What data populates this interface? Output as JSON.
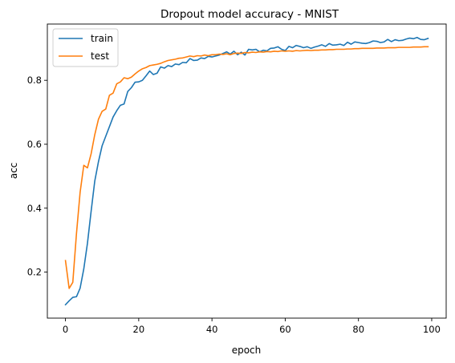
{
  "chart_data": {
    "type": "line",
    "title": "Dropout model accuracy - MNIST",
    "xlabel": "epoch",
    "ylabel": "acc",
    "xlim": [
      -4.95,
      103.95
    ],
    "ylim": [
      0.056,
      0.976
    ],
    "xticks": [
      0,
      20,
      40,
      60,
      80,
      100
    ],
    "xtick_labels": [
      "0",
      "20",
      "40",
      "60",
      "80",
      "100"
    ],
    "yticks": [
      0.2,
      0.4,
      0.6,
      0.8
    ],
    "ytick_labels": [
      "0.2",
      "0.4",
      "0.6",
      "0.8"
    ],
    "grid": false,
    "legend_position": "upper-left",
    "series": [
      {
        "name": "train",
        "color": "#1f77b4",
        "x": [
          0,
          1,
          2,
          3,
          4,
          5,
          6,
          7,
          8,
          9,
          10,
          11,
          12,
          13,
          14,
          15,
          16,
          17,
          18,
          19,
          20,
          21,
          22,
          23,
          24,
          25,
          26,
          27,
          28,
          29,
          30,
          31,
          32,
          33,
          34,
          35,
          36,
          37,
          38,
          39,
          40,
          41,
          42,
          43,
          44,
          45,
          46,
          47,
          48,
          49,
          50,
          51,
          52,
          53,
          54,
          55,
          56,
          57,
          58,
          59,
          60,
          61,
          62,
          63,
          64,
          65,
          66,
          67,
          68,
          69,
          70,
          71,
          72,
          73,
          74,
          75,
          76,
          77,
          78,
          79,
          80,
          81,
          82,
          83,
          84,
          85,
          86,
          87,
          88,
          89,
          90,
          91,
          92,
          93,
          94,
          95,
          96,
          97,
          98,
          99
        ],
        "values": [
          0.098,
          0.11,
          0.121,
          0.123,
          0.15,
          0.21,
          0.29,
          0.39,
          0.485,
          0.545,
          0.595,
          0.625,
          0.655,
          0.685,
          0.705,
          0.722,
          0.726,
          0.765,
          0.777,
          0.794,
          0.795,
          0.8,
          0.814,
          0.829,
          0.818,
          0.822,
          0.842,
          0.838,
          0.846,
          0.843,
          0.851,
          0.849,
          0.856,
          0.855,
          0.868,
          0.862,
          0.863,
          0.87,
          0.868,
          0.875,
          0.873,
          0.876,
          0.879,
          0.884,
          0.889,
          0.882,
          0.891,
          0.88,
          0.888,
          0.879,
          0.897,
          0.895,
          0.897,
          0.889,
          0.894,
          0.892,
          0.9,
          0.901,
          0.905,
          0.897,
          0.893,
          0.906,
          0.902,
          0.909,
          0.906,
          0.902,
          0.905,
          0.9,
          0.904,
          0.907,
          0.911,
          0.906,
          0.915,
          0.91,
          0.911,
          0.913,
          0.909,
          0.919,
          0.913,
          0.92,
          0.918,
          0.916,
          0.915,
          0.918,
          0.923,
          0.922,
          0.918,
          0.92,
          0.928,
          0.921,
          0.927,
          0.924,
          0.925,
          0.929,
          0.932,
          0.93,
          0.934,
          0.928,
          0.927,
          0.931
        ]
      },
      {
        "name": "test",
        "color": "#ff7f0e",
        "x": [
          0,
          1,
          2,
          3,
          4,
          5,
          6,
          7,
          8,
          9,
          10,
          11,
          12,
          13,
          14,
          15,
          16,
          17,
          18,
          19,
          20,
          21,
          22,
          23,
          24,
          25,
          26,
          27,
          28,
          29,
          30,
          31,
          32,
          33,
          34,
          35,
          36,
          37,
          38,
          39,
          40,
          41,
          42,
          43,
          44,
          45,
          46,
          47,
          48,
          49,
          50,
          51,
          52,
          53,
          54,
          55,
          56,
          57,
          58,
          59,
          60,
          61,
          62,
          63,
          64,
          65,
          66,
          67,
          68,
          69,
          70,
          71,
          72,
          73,
          74,
          75,
          76,
          77,
          78,
          79,
          80,
          81,
          82,
          83,
          84,
          85,
          86,
          87,
          88,
          89,
          90,
          91,
          92,
          93,
          94,
          95,
          96,
          97,
          98,
          99
        ],
        "values": [
          0.236,
          0.149,
          0.168,
          0.32,
          0.45,
          0.534,
          0.526,
          0.57,
          0.63,
          0.678,
          0.703,
          0.71,
          0.753,
          0.76,
          0.789,
          0.795,
          0.808,
          0.805,
          0.81,
          0.82,
          0.829,
          0.836,
          0.84,
          0.846,
          0.848,
          0.85,
          0.853,
          0.858,
          0.862,
          0.864,
          0.866,
          0.869,
          0.87,
          0.873,
          0.876,
          0.874,
          0.877,
          0.876,
          0.879,
          0.877,
          0.88,
          0.88,
          0.882,
          0.881,
          0.883,
          0.88,
          0.884,
          0.885,
          0.884,
          0.887,
          0.886,
          0.888,
          0.887,
          0.889,
          0.888,
          0.89,
          0.889,
          0.891,
          0.89,
          0.892,
          0.891,
          0.892,
          0.891,
          0.893,
          0.892,
          0.893,
          0.894,
          0.893,
          0.894,
          0.894,
          0.895,
          0.895,
          0.896,
          0.896,
          0.897,
          0.897,
          0.897,
          0.898,
          0.898,
          0.899,
          0.899,
          0.9,
          0.9,
          0.9,
          0.9,
          0.901,
          0.901,
          0.901,
          0.902,
          0.902,
          0.902,
          0.903,
          0.903,
          0.903,
          0.903,
          0.904,
          0.904,
          0.904,
          0.905,
          0.905
        ]
      }
    ]
  }
}
